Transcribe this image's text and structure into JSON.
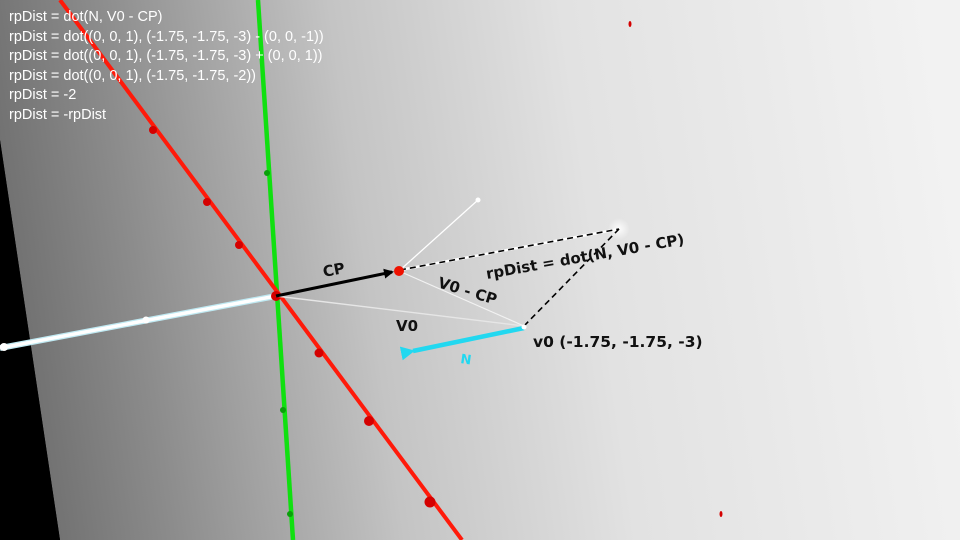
{
  "code_lines": [
    "rpDist = dot(N, V0 - CP)",
    "rpDist = dot((0, 0, 1), (-1.75, -1.75, -3) - (0, 0, -1))",
    "rpDist = dot((0, 0, 1), (-1.75, -1.75, -3) + (0, 0, 1))",
    "rpDist = dot((0, 0, 1), (-1.75, -1.75, -2))",
    "rpDist = -2",
    "rpDist = -rpDist"
  ],
  "labels": {
    "cp": "CP",
    "v0_minus_cp": "V0 - CP",
    "v0": "V0",
    "n": "N",
    "rpdist": "rpDist = dot(N, V0 - CP)",
    "vertex": "v0 (-1.75, -1.75, -3)"
  },
  "colors": {
    "x_axis": "#ff1a0a",
    "y_axis": "#10e010",
    "normal": "#22d8f0",
    "cp_vector": "#000000",
    "label_text": "#111111",
    "overlay_text": "#ffffff"
  }
}
